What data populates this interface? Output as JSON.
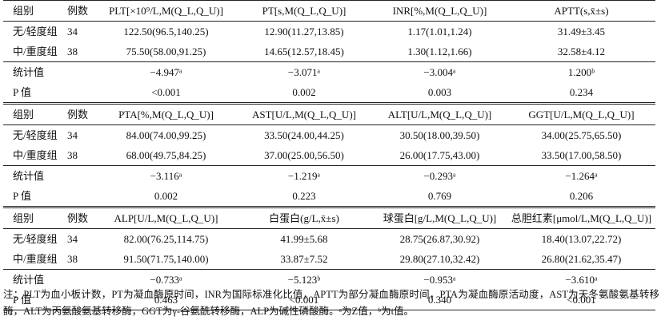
{
  "sections": [
    {
      "headers": [
        "组别",
        "例数",
        "PLT[×10⁹/L,M(Q_L,Q_U)]",
        "PT[s,M(Q_L,Q_U)]",
        "INR[%,M(Q_L,Q_U)]",
        "APTT(s,x̄±s)"
      ],
      "rows": [
        [
          "无/轻度组",
          "34",
          "122.50(96.5,140.25)",
          "12.90(11.27,13.85)",
          "1.17(1.01,1.24)",
          "31.49±3.45"
        ],
        [
          "中/重度组",
          "38",
          "75.50(58.00,91.25)",
          "14.65(12.57,18.45)",
          "1.30(1.12,1.66)",
          "32.58±4.12"
        ]
      ],
      "stat_label": "统计值",
      "stats": [
        "−4.947ᵃ",
        "−3.071ᵃ",
        "−3.004ᵃ",
        "1.200ᵇ"
      ],
      "p_label": "P 值",
      "p_values": [
        "<0.001",
        "0.002",
        "0.003",
        "0.234"
      ]
    },
    {
      "headers": [
        "组别",
        "例数",
        "PTA[%,M(Q_L,Q_U)]",
        "AST[U/L,M(Q_L,Q_U)]",
        "ALT[U/L,M(Q_L,Q_U)]",
        "GGT[U/L,M(Q_L,Q_U)]"
      ],
      "rows": [
        [
          "无/轻度组",
          "34",
          "84.00(74.00,99.25)",
          "33.50(24.00,44.25)",
          "30.50(18.00,39.50)",
          "34.00(25.75,65.50)"
        ],
        [
          "中/重度组",
          "38",
          "68.00(49.75,84.25)",
          "37.00(25.00,56.50)",
          "26.00(17.75,43.00)",
          "33.50(17.00,58.50)"
        ]
      ],
      "stat_label": "统计值",
      "stats": [
        "−3.116ᵃ",
        "−1.219ᵃ",
        "−0.293ᵃ",
        "−1.264ᵃ"
      ],
      "p_label": "P 值",
      "p_values": [
        "0.002",
        "0.223",
        "0.769",
        "0.206"
      ]
    },
    {
      "headers": [
        "组别",
        "例数",
        "ALP[U/L,M(Q_L,Q_U)]",
        "白蛋白(g/L,x̄±s)",
        "球蛋白[g/L,M(Q_L,Q_U)]",
        "总胆红素[μmol/L,M(Q_L,Q_U)]"
      ],
      "rows": [
        [
          "无/轻度组",
          "34",
          "82.00(76.25,114.75)",
          "41.99±5.68",
          "28.75(26.87,30.92)",
          "18.40(13.07,22.72)"
        ],
        [
          "中/重度组",
          "38",
          "91.50(71.75,140.00)",
          "33.87±7.52",
          "29.80(27.10,32.42)",
          "26.80(21.62,35.47)"
        ]
      ],
      "stat_label": "统计值",
      "stats": [
        "−0.733ᵃ",
        "−5.123ᵇ",
        "−0.953ᵃ",
        "−3.610ᵃ"
      ],
      "p_label": "P 值",
      "p_values": [
        "0.463",
        "<0.001",
        "0.340",
        "<0.001"
      ]
    }
  ],
  "note": "注：PLT为血小板计数，PT为凝血酶原时间，INR为国际标准化比值，APTT为部分凝血酶原时间，PTA为凝血酶原活动度，AST为天冬氨酸氨基转移酶，ALT为丙氨酸氨基转移酶，GGT为γ-谷氨酰转移酶，ALP为碱性磷酸酶。ᵃ为Z值，ᵇ为t值。"
}
